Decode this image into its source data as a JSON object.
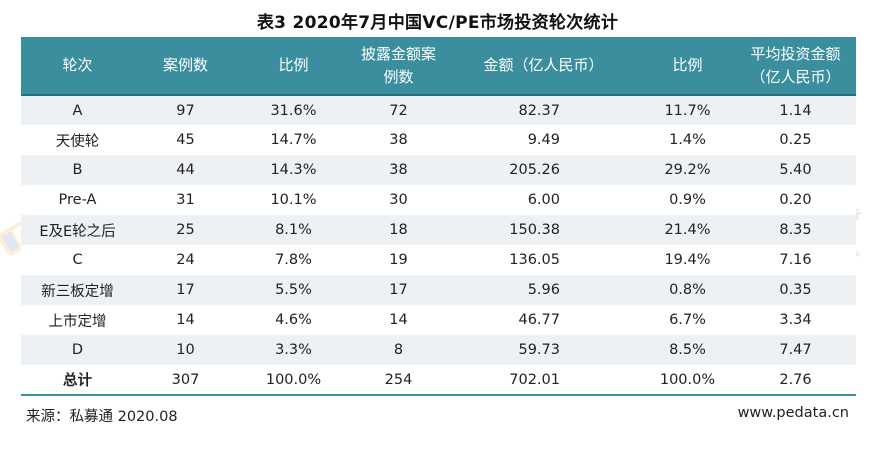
{
  "title": "表3  2020年7月中国VC/PE市场投资轮次统计",
  "table": {
    "headers": [
      "轮次",
      "案例数",
      "比例",
      "披露金额案例数",
      "金额（亿人民币）",
      "比例",
      "平均投资金额（亿人民币）"
    ],
    "rows": [
      {
        "round": "A",
        "cases": "97",
        "ratio": "31.6%",
        "disclosed": "72",
        "amount": "82.37",
        "amount_ratio": "11.7%",
        "avg": "1.14"
      },
      {
        "round": "天使轮",
        "cases": "45",
        "ratio": "14.7%",
        "disclosed": "38",
        "amount": "9.49",
        "amount_ratio": "1.4%",
        "avg": "0.25"
      },
      {
        "round": "B",
        "cases": "44",
        "ratio": "14.3%",
        "disclosed": "38",
        "amount": "205.26",
        "amount_ratio": "29.2%",
        "avg": "5.40"
      },
      {
        "round": "Pre-A",
        "cases": "31",
        "ratio": "10.1%",
        "disclosed": "30",
        "amount": "6.00",
        "amount_ratio": "0.9%",
        "avg": "0.20"
      },
      {
        "round": "E及E轮之后",
        "cases": "25",
        "ratio": "8.1%",
        "disclosed": "18",
        "amount": "150.38",
        "amount_ratio": "21.4%",
        "avg": "8.35"
      },
      {
        "round": "C",
        "cases": "24",
        "ratio": "7.8%",
        "disclosed": "19",
        "amount": "136.05",
        "amount_ratio": "19.4%",
        "avg": "7.16"
      },
      {
        "round": "新三板定增",
        "cases": "17",
        "ratio": "5.5%",
        "disclosed": "17",
        "amount": "5.96",
        "amount_ratio": "0.8%",
        "avg": "0.35"
      },
      {
        "round": "上市定增",
        "cases": "14",
        "ratio": "4.6%",
        "disclosed": "14",
        "amount": "46.77",
        "amount_ratio": "6.7%",
        "avg": "3.34"
      },
      {
        "round": "D",
        "cases": "10",
        "ratio": "3.3%",
        "disclosed": "8",
        "amount": "59.73",
        "amount_ratio": "8.5%",
        "avg": "7.47"
      }
    ],
    "total": {
      "round": "总计",
      "cases": "307",
      "ratio": "100.0%",
      "disclosed": "254",
      "amount": "702.01",
      "amount_ratio": "100.0%",
      "avg": "2.76"
    }
  },
  "footer": {
    "source": "来源：私募通 2020.08",
    "url": "www.pedata.cn"
  },
  "watermark": {
    "text": "私募通"
  },
  "colors": {
    "header_bg": "#3b8e9e",
    "header_text": "#ffffff",
    "stripe": "#eef1f3"
  }
}
